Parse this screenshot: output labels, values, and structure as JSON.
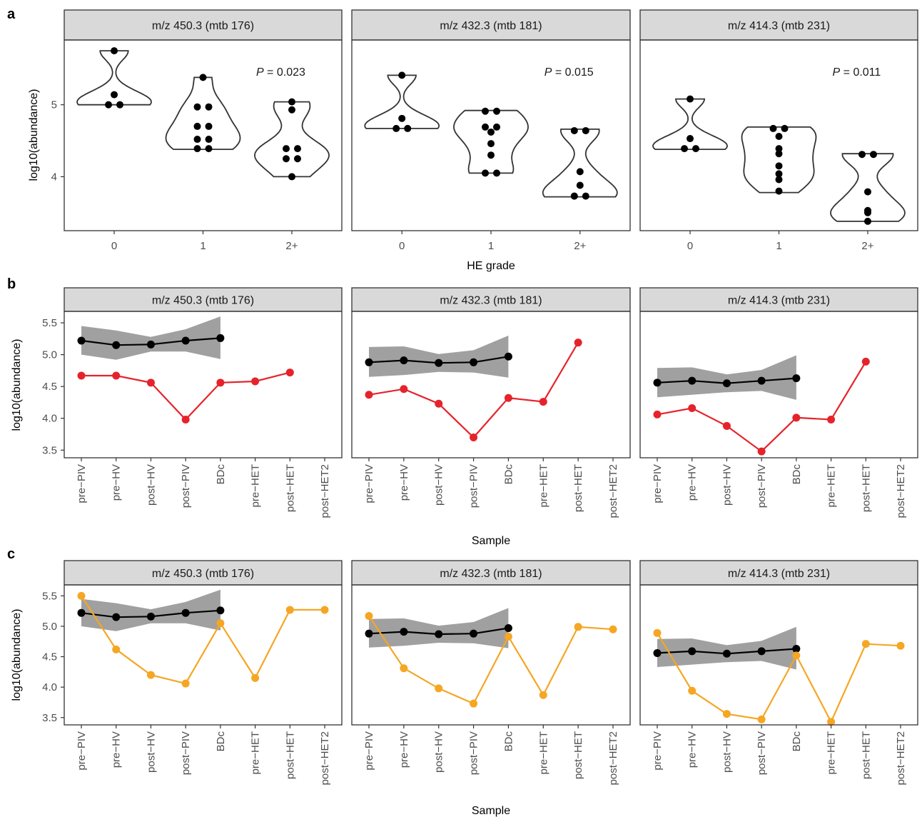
{
  "panel_labels": {
    "a": "a",
    "b": "b",
    "c": "c"
  },
  "strip_titles": [
    "m/z 450.3 (mtb 176)",
    "m/z 432.3 (mtb 181)",
    "m/z 414.3 (mtb 231)"
  ],
  "colors": {
    "strip_fill": "#d9d9d9",
    "ref_line": "#000000",
    "ref_band": "#a0a0a0",
    "row_b_line": "#e5232b",
    "row_c_line": "#f5a623"
  },
  "chart_data": [
    {
      "type": "violin",
      "panel": "a",
      "xlabel": "HE grade",
      "ylabel": "log10(abundance)",
      "categories": [
        "0",
        "1",
        "2+"
      ],
      "yticks": [
        4,
        5
      ],
      "facets": [
        {
          "title": "m/z 450.3 (mtb 176)",
          "ylim": [
            3.25,
            5.9
          ],
          "p_label": "P",
          "p_value": "= 0.023",
          "groups": [
            {
              "category": "0",
              "points": [
                5.75,
                5.14,
                5.0,
                5.0
              ]
            },
            {
              "category": "1",
              "points": [
                5.38,
                4.97,
                4.97,
                4.7,
                4.7,
                4.52,
                4.52,
                4.39,
                4.39
              ]
            },
            {
              "category": "2+",
              "points": [
                5.04,
                4.93,
                4.39,
                4.39,
                4.25,
                4.25,
                4.0
              ]
            }
          ],
          "violin_range": [
            [
              5.0,
              5.75
            ],
            [
              4.38,
              5.38
            ],
            [
              4.0,
              5.04
            ]
          ]
        },
        {
          "title": "m/z 432.3 (mtb 181)",
          "ylim": [
            3.25,
            5.9
          ],
          "p_label": "P",
          "p_value": "= 0.015",
          "groups": [
            {
              "category": "0",
              "points": [
                5.41,
                4.81,
                4.67,
                4.67
              ]
            },
            {
              "category": "1",
              "points": [
                4.91,
                4.91,
                4.69,
                4.69,
                4.62,
                4.46,
                4.3,
                4.05,
                4.05
              ]
            },
            {
              "category": "2+",
              "points": [
                4.64,
                4.64,
                4.07,
                3.88,
                3.73,
                3.73,
                3.73
              ]
            }
          ],
          "violin_range": [
            [
              4.67,
              5.41
            ],
            [
              4.05,
              4.92
            ],
            [
              3.72,
              4.66
            ]
          ]
        },
        {
          "title": "m/z 414.3 (mtb 231)",
          "ylim": [
            3.25,
            5.9
          ],
          "p_label": "P",
          "p_value": "= 0.011",
          "groups": [
            {
              "category": "0",
              "points": [
                5.08,
                4.53,
                4.39,
                4.39
              ]
            },
            {
              "category": "1",
              "points": [
                4.67,
                4.67,
                4.56,
                4.39,
                4.32,
                4.15,
                4.04,
                3.96,
                3.8
              ]
            },
            {
              "category": "2+",
              "points": [
                4.31,
                4.31,
                3.79,
                3.53,
                3.5,
                3.38
              ]
            }
          ],
          "violin_range": [
            [
              4.38,
              5.08
            ],
            [
              3.78,
              4.69
            ],
            [
              3.38,
              4.32
            ]
          ]
        }
      ]
    },
    {
      "type": "line",
      "panel": "b",
      "xlabel": "Sample",
      "ylabel": "log10(abundance)",
      "x": [
        "pre−PIV",
        "pre−HV",
        "post−HV",
        "post−PIV",
        "BDc",
        "pre−HET",
        "post−HET",
        "post−HET2"
      ],
      "yticks": [
        "3.5",
        "4.0",
        "4.5",
        "5.0",
        "5.5"
      ],
      "ylim": [
        3.38,
        5.68
      ],
      "facets": [
        {
          "title": "m/z 450.3 (mtb 176)",
          "reference": {
            "mean": [
              5.22,
              5.15,
              5.16,
              5.22,
              5.26
            ],
            "lower": [
              5.0,
              4.92,
              5.05,
              5.05,
              4.93
            ],
            "upper": [
              5.45,
              5.38,
              5.28,
              5.4,
              5.6
            ]
          },
          "series": [
            {
              "values": [
                4.67,
                4.67,
                4.56,
                3.98,
                4.56,
                4.58,
                4.72,
                null
              ]
            }
          ]
        },
        {
          "title": "m/z 432.3 (mtb 181)",
          "reference": {
            "mean": [
              4.88,
              4.91,
              4.87,
              4.88,
              4.97
            ],
            "lower": [
              4.65,
              4.68,
              4.73,
              4.72,
              4.64
            ],
            "upper": [
              5.12,
              5.13,
              5.01,
              5.07,
              5.3
            ]
          },
          "series": [
            {
              "values": [
                4.37,
                4.46,
                4.23,
                3.7,
                4.32,
                4.26,
                5.19,
                null
              ]
            }
          ]
        },
        {
          "title": "m/z 414.3 (mtb 231)",
          "reference": {
            "mean": [
              4.56,
              4.59,
              4.55,
              4.59,
              4.63
            ],
            "lower": [
              4.33,
              4.37,
              4.41,
              4.43,
              4.29
            ],
            "upper": [
              4.79,
              4.8,
              4.69,
              4.76,
              4.99
            ]
          },
          "series": [
            {
              "values": [
                4.06,
                4.16,
                3.88,
                3.48,
                4.01,
                3.98,
                4.89,
                null
              ]
            }
          ]
        }
      ]
    },
    {
      "type": "line",
      "panel": "c",
      "xlabel": "Sample",
      "ylabel": "log10(abundance)",
      "x": [
        "pre−PIV",
        "pre−HV",
        "post−HV",
        "post−PIV",
        "BDc",
        "pre−HET",
        "post−HET",
        "post−HET2"
      ],
      "yticks": [
        "3.5",
        "4.0",
        "4.5",
        "5.0",
        "5.5"
      ],
      "ylim": [
        3.38,
        5.68
      ],
      "facets": [
        {
          "title": "m/z 450.3 (mtb 176)",
          "reference": {
            "mean": [
              5.22,
              5.15,
              5.16,
              5.22,
              5.26
            ],
            "lower": [
              5.0,
              4.92,
              5.05,
              5.05,
              4.93
            ],
            "upper": [
              5.45,
              5.38,
              5.28,
              5.4,
              5.6
            ]
          },
          "series": [
            {
              "values": [
                5.5,
                4.62,
                4.2,
                4.06,
                5.05,
                4.15,
                5.27,
                5.27
              ]
            }
          ]
        },
        {
          "title": "m/z 432.3 (mtb 181)",
          "reference": {
            "mean": [
              4.88,
              4.91,
              4.87,
              4.88,
              4.97
            ],
            "lower": [
              4.65,
              4.68,
              4.73,
              4.72,
              4.64
            ],
            "upper": [
              5.12,
              5.13,
              5.01,
              5.07,
              5.3
            ]
          },
          "series": [
            {
              "values": [
                5.17,
                4.31,
                3.98,
                3.73,
                4.83,
                3.87,
                4.99,
                4.95
              ]
            }
          ]
        },
        {
          "title": "m/z 414.3 (mtb 231)",
          "reference": {
            "mean": [
              4.56,
              4.59,
              4.55,
              4.59,
              4.63
            ],
            "lower": [
              4.33,
              4.37,
              4.41,
              4.43,
              4.29
            ],
            "upper": [
              4.79,
              4.8,
              4.69,
              4.76,
              4.99
            ]
          },
          "series": [
            {
              "values": [
                4.89,
                3.94,
                3.56,
                3.47,
                4.52,
                3.43,
                4.71,
                4.68
              ]
            }
          ]
        }
      ]
    }
  ]
}
